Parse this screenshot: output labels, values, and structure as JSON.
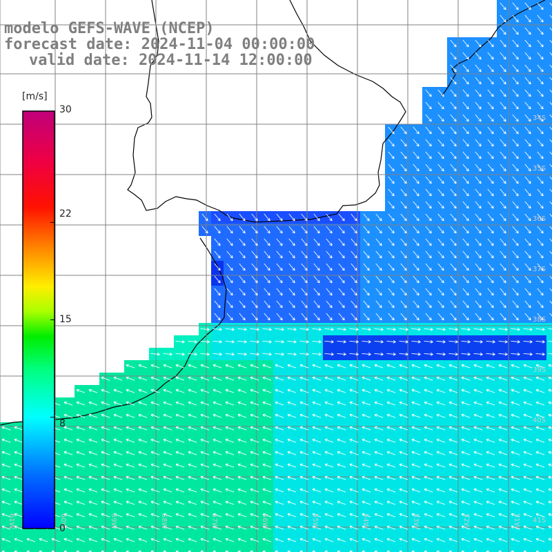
{
  "title": {
    "line1": "modelo GEFS-WAVE (NCEP)",
    "line2": "forecast date: 2024-11-04 00:00:00",
    "line3": "valid date: 2024-11-14 12:00:00"
  },
  "colorbar": {
    "unit": "[m/s]",
    "ticks": [
      "30",
      "22",
      "15",
      "8",
      "0"
    ],
    "tick_values": [
      30,
      22,
      15,
      8,
      0
    ],
    "range": [
      0,
      30
    ],
    "colors": [
      "#0000ff",
      "#0080ff",
      "#00ffff",
      "#00ff80",
      "#00ff00",
      "#80ff00",
      "#ffff00",
      "#ff8000",
      "#ff0000",
      "#e00060",
      "#c00080"
    ]
  },
  "map": {
    "grid_lon_labels": [
      "61W",
      "60W",
      "59W",
      "58W",
      "57W",
      "56W",
      "55W",
      "54W",
      "53W",
      "52W",
      "51W"
    ],
    "grid_lat_labels": [
      "34S",
      "35S",
      "36S",
      "37S",
      "38S",
      "39S",
      "40S",
      "41S"
    ],
    "land_color": "#ffffff",
    "coast_color": "#000000",
    "grid_color": "#808080",
    "arrow_color": "#ffffff"
  }
}
